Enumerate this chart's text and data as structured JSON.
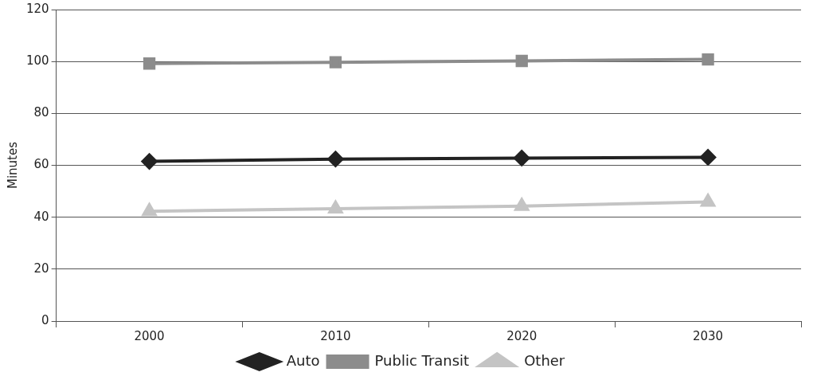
{
  "chart_data": {
    "type": "line",
    "ylabel": "Minutes",
    "categories": [
      "2000",
      "2010",
      "2020",
      "2030"
    ],
    "series": [
      {
        "name": "Auto",
        "color": "#222222",
        "marker": "diamond",
        "values": [
          61.5,
          62.4,
          62.8,
          63.1
        ]
      },
      {
        "name": "Public Transit",
        "color": "#8c8c8c",
        "marker": "square",
        "values": [
          99.2,
          99.7,
          100.2,
          100.8
        ]
      },
      {
        "name": "Other",
        "color": "#c4c4c4",
        "marker": "triangle",
        "values": [
          42.3,
          43.3,
          44.3,
          45.9
        ]
      }
    ],
    "ylim": [
      0,
      120
    ],
    "yticks": [
      0,
      20,
      40,
      60,
      80,
      100,
      120
    ],
    "grid": "y",
    "legend": "bottom"
  }
}
